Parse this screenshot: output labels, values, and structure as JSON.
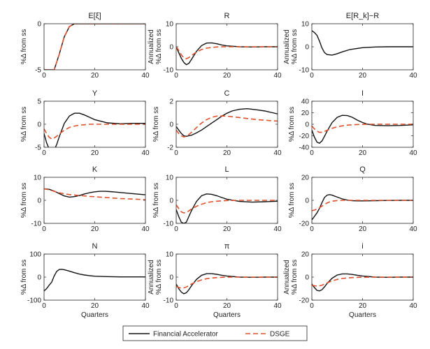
{
  "colors": {
    "financial_accelerator": "#111111",
    "dsge": "#e0502a",
    "axes": "#262626"
  },
  "legend": {
    "financial_accelerator": "Financial Accelerator",
    "dsge": "DSGE",
    "placement": "bottom-center"
  },
  "chart_data": [
    {
      "type": "line",
      "title": "E[ξ]",
      "xlabel": "",
      "ylabel": "%Δ from ss",
      "xlim": [
        0,
        40
      ],
      "ylim": [
        -5,
        0
      ],
      "xticks": [
        0,
        20,
        40
      ],
      "yticks": [
        -5,
        0
      ],
      "x": [
        0,
        2,
        4,
        6,
        8,
        10,
        12,
        15,
        20,
        25,
        30,
        35,
        40
      ],
      "series": [
        {
          "name": "Financial Accelerator",
          "values": [
            -5,
            -5,
            -5,
            -3.3,
            -1.4,
            -0.3,
            0,
            0,
            0,
            0,
            0,
            0,
            0
          ]
        },
        {
          "name": "DSGE",
          "values": [
            -5,
            -5,
            -5,
            -3.3,
            -1.4,
            -0.3,
            0,
            0,
            0,
            0,
            0,
            0,
            0
          ]
        }
      ]
    },
    {
      "type": "line",
      "title": "R",
      "xlabel": "",
      "ylabel": "Annualized %Δ from ss",
      "xlim": [
        0,
        40
      ],
      "ylim": [
        -10,
        10
      ],
      "xticks": [
        0,
        20,
        40
      ],
      "yticks": [
        -10,
        0,
        10
      ],
      "x": [
        0,
        1,
        2,
        3,
        4,
        5,
        6,
        8,
        10,
        12,
        14,
        16,
        18,
        20,
        25,
        30,
        35,
        40
      ],
      "series": [
        {
          "name": "Financial Accelerator",
          "values": [
            0,
            -2.5,
            -5,
            -6.8,
            -7.8,
            -7.2,
            -5.5,
            -2,
            0.5,
            1.6,
            1.7,
            1.3,
            0.8,
            0.4,
            0,
            -0.1,
            0,
            0
          ]
        },
        {
          "name": "DSGE",
          "values": [
            0,
            -1.5,
            -3.5,
            -4.8,
            -5.2,
            -4.7,
            -3.8,
            -2.3,
            -1.2,
            -0.6,
            -0.3,
            -0.1,
            0,
            0,
            0,
            0,
            0,
            0
          ]
        }
      ]
    },
    {
      "type": "line",
      "title": "E[R_k]−R",
      "xlabel": "",
      "ylabel": "Annualized %Δ from ss",
      "xlim": [
        0,
        40
      ],
      "ylim": [
        -10,
        10
      ],
      "xticks": [
        0,
        20,
        40
      ],
      "yticks": [
        -10,
        0,
        10
      ],
      "x": [
        0,
        1,
        2,
        3,
        4,
        5,
        6,
        8,
        10,
        12,
        15,
        20,
        25,
        30,
        35,
        40
      ],
      "series": [
        {
          "name": "Financial Accelerator",
          "values": [
            7,
            6.2,
            5,
            2.5,
            -0.5,
            -2.5,
            -3.4,
            -3.6,
            -3,
            -2.2,
            -1.2,
            -0.4,
            -0.1,
            0,
            0,
            0
          ]
        }
      ]
    },
    {
      "type": "line",
      "title": "Y",
      "xlabel": "",
      "ylabel": "%Δ from ss",
      "xlim": [
        0,
        40
      ],
      "ylim": [
        -5,
        5
      ],
      "xticks": [
        0,
        20,
        40
      ],
      "yticks": [
        -5,
        0,
        5
      ],
      "x": [
        0,
        1,
        2,
        3,
        4,
        5,
        6,
        8,
        10,
        12,
        14,
        16,
        18,
        20,
        25,
        30,
        35,
        40
      ],
      "series": [
        {
          "name": "Financial Accelerator",
          "values": [
            -2,
            -4,
            -5.4,
            -6,
            -5.6,
            -4.4,
            -2.7,
            0.2,
            1.8,
            2.4,
            2.4,
            2,
            1.5,
            1,
            0.3,
            0.1,
            0.2,
            0.2
          ]
        },
        {
          "name": "DSGE",
          "values": [
            -1,
            -2,
            -2.8,
            -3.2,
            -3,
            -2.6,
            -2.1,
            -1.3,
            -0.7,
            -0.4,
            -0.2,
            -0.1,
            0,
            0,
            0,
            0,
            0,
            0
          ]
        }
      ]
    },
    {
      "type": "line",
      "title": "C",
      "xlabel": "",
      "ylabel": "%Δ from ss",
      "xlim": [
        0,
        40
      ],
      "ylim": [
        -2,
        2
      ],
      "xticks": [
        0,
        20,
        40
      ],
      "yticks": [
        -2,
        0,
        2
      ],
      "x": [
        0,
        1,
        2,
        3,
        4,
        5,
        6,
        8,
        10,
        12,
        14,
        16,
        18,
        20,
        22,
        25,
        28,
        30,
        32,
        35,
        38,
        40
      ],
      "series": [
        {
          "name": "Financial Accelerator",
          "values": [
            -0.2,
            -0.5,
            -0.8,
            -1,
            -1.05,
            -1,
            -0.95,
            -0.75,
            -0.5,
            -0.2,
            0.1,
            0.4,
            0.7,
            0.95,
            1.15,
            1.3,
            1.35,
            1.3,
            1.25,
            1.15,
            1,
            0.9
          ]
        },
        {
          "name": "DSGE",
          "values": [
            -0.5,
            -0.8,
            -1,
            -1.1,
            -1.05,
            -0.9,
            -0.7,
            -0.3,
            0.1,
            0.4,
            0.6,
            0.7,
            0.72,
            0.7,
            0.65,
            0.58,
            0.5,
            0.45,
            0.4,
            0.35,
            0.3,
            0.28
          ]
        }
      ]
    },
    {
      "type": "line",
      "title": "I",
      "xlabel": "",
      "ylabel": "%Δ from ss",
      "xlim": [
        0,
        40
      ],
      "ylim": [
        -40,
        40
      ],
      "xticks": [
        0,
        20,
        40
      ],
      "yticks": [
        -40,
        -20,
        0,
        20,
        40
      ],
      "x": [
        0,
        1,
        2,
        3,
        4,
        5,
        6,
        8,
        10,
        12,
        14,
        16,
        18,
        20,
        22,
        25,
        30,
        35,
        40
      ],
      "series": [
        {
          "name": "Financial Accelerator",
          "values": [
            -10,
            -22,
            -31,
            -33,
            -29,
            -21,
            -12,
            3,
            12,
            15.5,
            15,
            12,
            7,
            3,
            0,
            -2,
            -2.5,
            -2,
            -1
          ]
        },
        {
          "name": "DSGE",
          "values": [
            -3,
            -8,
            -12,
            -14,
            -14,
            -12.5,
            -10.5,
            -7,
            -4.5,
            -2.8,
            -1.6,
            -0.9,
            -0.5,
            -0.2,
            0,
            0,
            0,
            0,
            0
          ]
        }
      ]
    },
    {
      "type": "line",
      "title": "K",
      "xlabel": "",
      "ylabel": "%Δ from ss",
      "xlim": [
        0,
        40
      ],
      "ylim": [
        -10,
        10
      ],
      "xticks": [
        0,
        20,
        40
      ],
      "yticks": [
        -10,
        0,
        10
      ],
      "x": [
        0,
        2,
        4,
        6,
        8,
        10,
        12,
        14,
        16,
        18,
        20,
        22,
        24,
        26,
        28,
        30,
        32,
        35,
        38,
        40
      ],
      "series": [
        {
          "name": "Financial Accelerator",
          "values": [
            5,
            4.8,
            4,
            2.9,
            1.9,
            1.4,
            1.6,
            2.1,
            2.8,
            3.3,
            3.7,
            3.9,
            3.9,
            3.8,
            3.6,
            3.4,
            3.2,
            2.9,
            2.6,
            2.4
          ]
        },
        {
          "name": "DSGE",
          "values": [
            5,
            4.6,
            3.9,
            3.3,
            2.8,
            2.5,
            2.3,
            2.1,
            1.9,
            1.7,
            1.55,
            1.4,
            1.25,
            1.1,
            0.95,
            0.8,
            0.7,
            0.55,
            0.4,
            0.3
          ]
        }
      ]
    },
    {
      "type": "line",
      "title": "L",
      "xlabel": "",
      "ylabel": "%Δ from ss",
      "xlim": [
        0,
        40
      ],
      "ylim": [
        -10,
        10
      ],
      "xticks": [
        0,
        20,
        40
      ],
      "yticks": [
        -10,
        0,
        10
      ],
      "x": [
        0,
        1,
        2,
        3,
        4,
        5,
        6,
        8,
        10,
        12,
        14,
        16,
        18,
        20,
        25,
        30,
        35,
        40
      ],
      "series": [
        {
          "name": "Financial Accelerator",
          "values": [
            -4,
            -7,
            -9.5,
            -10,
            -9.5,
            -7,
            -4.5,
            -0.5,
            2,
            2.8,
            2.6,
            2,
            1.2,
            0.5,
            -0.5,
            -0.8,
            -0.6,
            -0.4
          ]
        },
        {
          "name": "DSGE",
          "values": [
            -2,
            -3.5,
            -5,
            -5.5,
            -5.3,
            -4.6,
            -3.8,
            -2.6,
            -1.7,
            -1,
            -0.6,
            -0.4,
            -0.2,
            -0.1,
            0,
            0,
            0,
            0
          ]
        }
      ]
    },
    {
      "type": "line",
      "title": "Q",
      "xlabel": "",
      "ylabel": "%Δ from ss",
      "xlim": [
        0,
        40
      ],
      "ylim": [
        -20,
        20
      ],
      "xticks": [
        0,
        20,
        40
      ],
      "yticks": [
        -20,
        0,
        20
      ],
      "x": [
        0,
        1,
        2,
        3,
        4,
        5,
        6,
        7,
        8,
        10,
        12,
        14,
        16,
        18,
        20,
        25,
        30,
        35,
        40
      ],
      "series": [
        {
          "name": "Financial Accelerator",
          "values": [
            -17,
            -14,
            -11,
            -7,
            -2,
            2.5,
            4.5,
            5,
            4.5,
            2.8,
            1.2,
            0.2,
            -0.3,
            -0.5,
            -0.5,
            -0.3,
            -0.1,
            0,
            0
          ]
        },
        {
          "name": "DSGE",
          "values": [
            -9,
            -8.5,
            -7.5,
            -6.5,
            -5,
            -3.5,
            -2.3,
            -1.4,
            -0.8,
            -0.2,
            0,
            0,
            0,
            0,
            0,
            0,
            0,
            0,
            0
          ]
        }
      ]
    },
    {
      "type": "line",
      "title": "N",
      "xlabel": "Quarters",
      "ylabel": "%Δ from ss",
      "xlim": [
        0,
        40
      ],
      "ylim": [
        -100,
        100
      ],
      "xticks": [
        0,
        20,
        40
      ],
      "yticks": [
        -100,
        0,
        100
      ],
      "x": [
        0,
        1,
        2,
        3,
        4,
        5,
        6,
        7,
        8,
        10,
        12,
        14,
        16,
        18,
        20,
        25,
        30,
        35,
        40
      ],
      "series": [
        {
          "name": "Financial Accelerator",
          "values": [
            -60,
            -50,
            -35,
            -22,
            5,
            25,
            33,
            34,
            32,
            26,
            19,
            13,
            9,
            6,
            4,
            2,
            1,
            1,
            1
          ]
        }
      ]
    },
    {
      "type": "line",
      "title": "π",
      "xlabel": "Quarters",
      "ylabel": "Annualized %Δ from ss",
      "xlim": [
        0,
        40
      ],
      "ylim": [
        -10,
        10
      ],
      "xticks": [
        0,
        20,
        40
      ],
      "yticks": [
        -10,
        0,
        10
      ],
      "x": [
        0,
        1,
        2,
        3,
        4,
        5,
        6,
        8,
        10,
        12,
        14,
        16,
        18,
        20,
        25,
        30,
        35,
        40
      ],
      "series": [
        {
          "name": "Financial Accelerator",
          "values": [
            -3,
            -5,
            -6.5,
            -7.2,
            -6.8,
            -5.5,
            -3.8,
            -1,
            0.8,
            1.5,
            1.5,
            1.2,
            0.8,
            0.5,
            0,
            -0.1,
            0,
            0
          ]
        },
        {
          "name": "DSGE",
          "values": [
            -4,
            -4.5,
            -4.8,
            -4.7,
            -4.3,
            -3.7,
            -3,
            -2,
            -1.2,
            -0.7,
            -0.4,
            -0.2,
            -0.1,
            0,
            0,
            0,
            0,
            0
          ]
        }
      ]
    },
    {
      "type": "line",
      "title": "i",
      "xlabel": "Quarters",
      "ylabel": "Annualized %Δ from ss",
      "xlim": [
        0,
        40
      ],
      "ylim": [
        -20,
        20
      ],
      "xticks": [
        0,
        20,
        40
      ],
      "yticks": [
        -20,
        0,
        20
      ],
      "x": [
        0,
        1,
        2,
        3,
        4,
        5,
        6,
        8,
        10,
        12,
        14,
        16,
        18,
        20,
        25,
        30,
        35,
        40
      ],
      "series": [
        {
          "name": "Financial Accelerator",
          "values": [
            -6,
            -9,
            -11.5,
            -12,
            -11,
            -8.5,
            -5.5,
            -1,
            1.8,
            2.8,
            2.8,
            2.3,
            1.6,
            1,
            0,
            -0.2,
            0,
            0
          ]
        },
        {
          "name": "DSGE",
          "values": [
            -7,
            -7.5,
            -7.8,
            -7.6,
            -7,
            -6,
            -5,
            -3.3,
            -2,
            -1.2,
            -0.7,
            -0.4,
            -0.2,
            -0.1,
            0,
            0,
            0,
            0
          ]
        }
      ]
    }
  ]
}
